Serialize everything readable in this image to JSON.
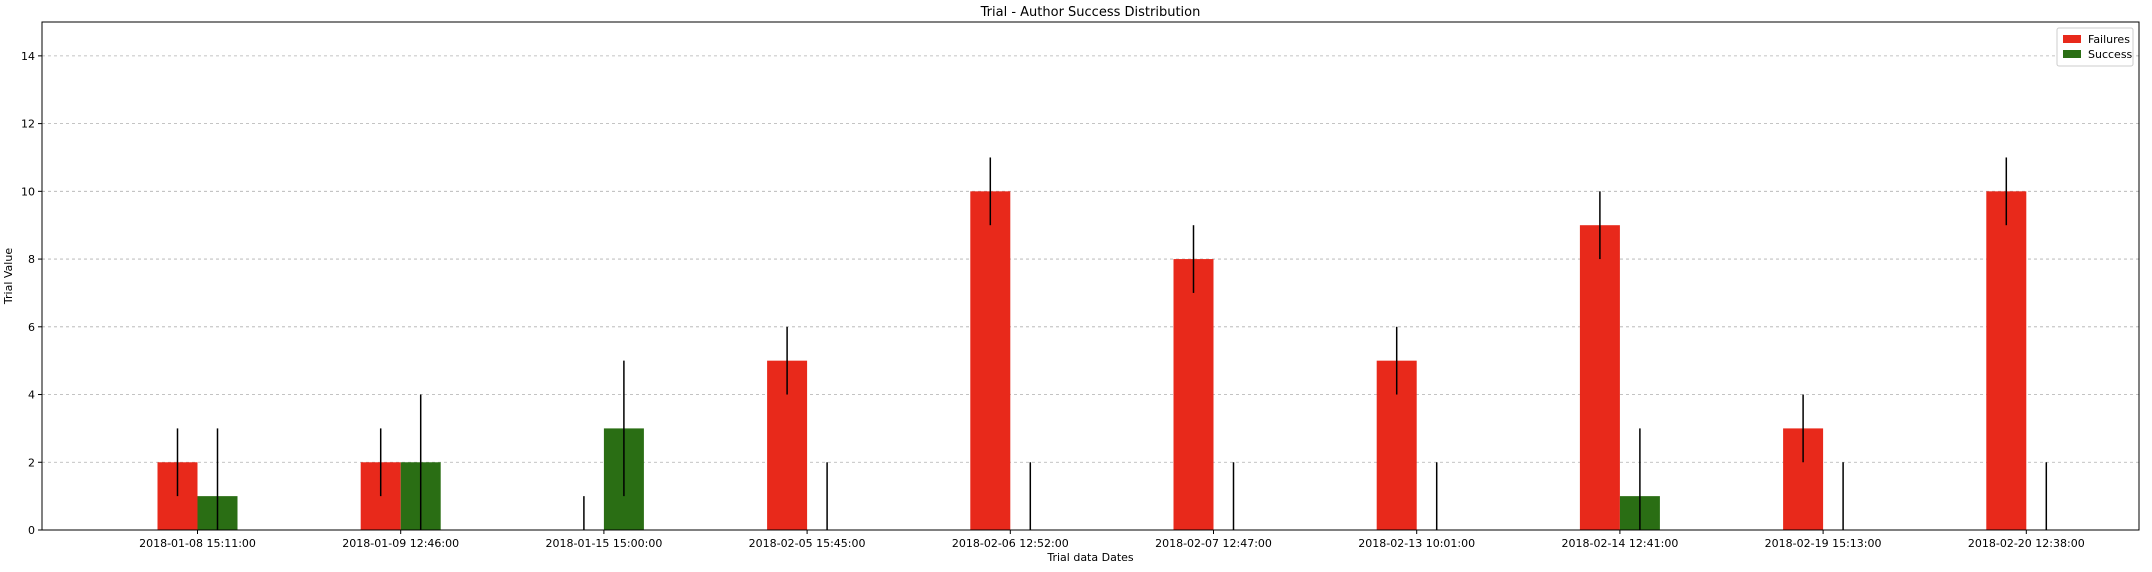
{
  "chart_data": {
    "type": "bar",
    "title": "Trial - Author Success Distribution",
    "xlabel": "Trial data Dates",
    "ylabel": "Trial Value",
    "ylim": [
      0,
      15
    ],
    "yticks": [
      0,
      2,
      4,
      6,
      8,
      10,
      12,
      14
    ],
    "grid": "horizontal-dashed",
    "legend_position": "top-right",
    "categories": [
      "2018-01-08 15:11:00",
      "2018-01-09 12:46:00",
      "2018-01-15 15:00:00",
      "2018-02-05 15:45:00",
      "2018-02-06 12:52:00",
      "2018-02-07 12:47:00",
      "2018-02-13 10:01:00",
      "2018-02-14 12:41:00",
      "2018-02-19 15:13:00",
      "2018-02-20 12:38:00"
    ],
    "series": [
      {
        "name": "Failures",
        "color": "#e8291b",
        "values": [
          2,
          2,
          0,
          5,
          10,
          8,
          5,
          9,
          3,
          10
        ],
        "error": [
          1,
          1,
          1,
          1,
          1,
          1,
          1,
          1,
          1,
          1
        ]
      },
      {
        "name": "Success",
        "color": "#2a6e14",
        "values": [
          1,
          2,
          3,
          0,
          0,
          0,
          0,
          1,
          0,
          0
        ],
        "error": [
          2,
          2,
          2,
          2,
          2,
          2,
          2,
          2,
          2,
          2
        ]
      }
    ],
    "errorbar_color": "#000000"
  }
}
